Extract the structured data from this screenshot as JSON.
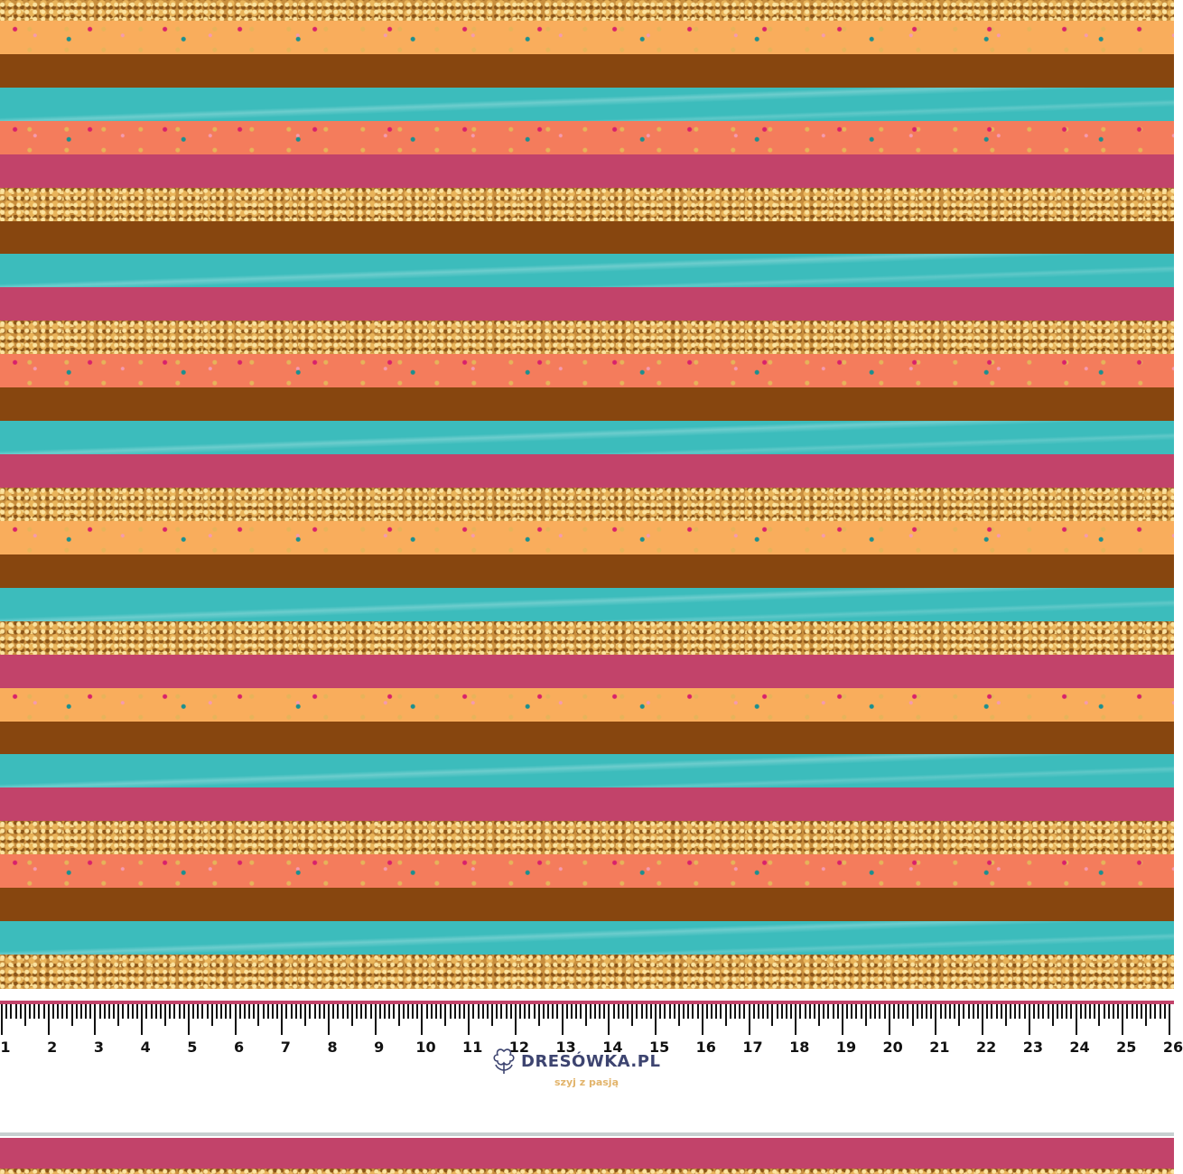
{
  "colors": {
    "gold": "#c98f3e",
    "light_orange": "#f9ad5c",
    "brown": "#87460f",
    "teal": "#3cbcbc",
    "coral": "#f47c5c",
    "pink": "#c2436a"
  },
  "stripes": [
    "gold",
    "light_orange",
    "brown",
    "teal",
    "coral",
    "pink",
    "gold",
    "brown",
    "teal",
    "pink",
    "gold",
    "coral",
    "brown",
    "teal",
    "pink",
    "gold",
    "light_orange",
    "brown",
    "teal",
    "gold",
    "pink",
    "light_orange",
    "brown",
    "teal",
    "pink",
    "gold",
    "coral",
    "brown",
    "teal",
    "gold"
  ],
  "ruler": {
    "unit_labels": [
      "1",
      "2",
      "3",
      "4",
      "5",
      "6",
      "7",
      "8",
      "9",
      "10",
      "11",
      "12",
      "13",
      "14",
      "15",
      "16",
      "17",
      "18",
      "19",
      "20",
      "21",
      "22",
      "23",
      "24",
      "25",
      "26"
    ]
  },
  "brand": {
    "name": "DRESÓWKA.PL",
    "tagline": "szyj z pasją",
    "icon": "cotton-flower-icon"
  }
}
